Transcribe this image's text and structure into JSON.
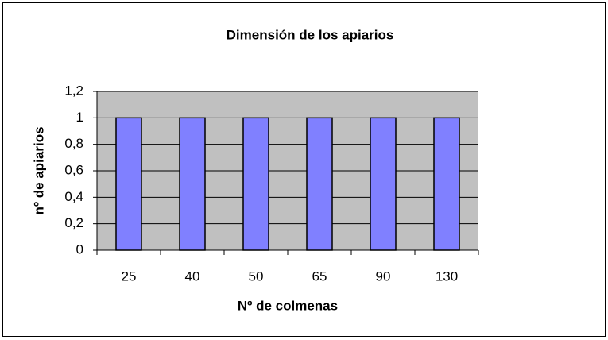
{
  "chart_data": {
    "type": "bar",
    "title": "Dimensión de los apiarios",
    "x_label": "Nº de colmenas",
    "y_label": "nº de apiarios",
    "categories": [
      "25",
      "40",
      "50",
      "65",
      "90",
      "130"
    ],
    "values": [
      1,
      1,
      1,
      1,
      1,
      1
    ],
    "color": "#8080ff",
    "ylim": [
      0,
      1.2
    ],
    "yticks": [
      0,
      {
        "value": 0.2,
        "label": "0,2"
      },
      {
        "value": 0.4,
        "label": "0,4"
      },
      {
        "value": 0.6,
        "label": "0,6"
      },
      {
        "value": 0.8,
        "label": "0,8"
      },
      1,
      {
        "value": 1.2,
        "label": "1,2"
      }
    ],
    "grid": true
  }
}
